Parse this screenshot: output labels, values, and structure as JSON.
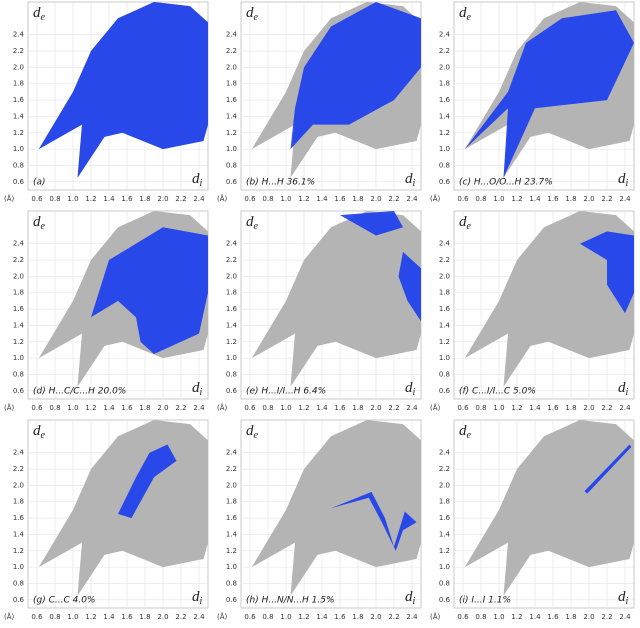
{
  "chart_data": {
    "type": "fingerprint",
    "xlim": [
      0.5,
      2.5
    ],
    "ylim": [
      0.5,
      2.8
    ],
    "xticks": [
      0.6,
      0.8,
      {
        "value": 1,
        "label": "1.0"
      },
      1.2,
      1.4,
      1.6,
      1.8,
      {
        "value": 2,
        "label": "2.0"
      },
      2.2,
      2.4
    ],
    "yticks": [
      0.6,
      0.8,
      {
        "value": 1,
        "label": "1.0"
      },
      1.2,
      1.4,
      1.6,
      1.8,
      {
        "value": 2,
        "label": "2.0"
      },
      2.2,
      2.4
    ],
    "unit": "(Å)",
    "xlabel": [
      "d",
      "i"
    ],
    "ylabel": [
      "d",
      "e"
    ],
    "grid": true,
    "color": "#1a3cf0",
    "background_color": "#b4b4b4",
    "panels": [
      "(a)",
      "(b) H...H  36.1%",
      "(c) H...O/O...H  23.7%",
      "(d) H...C/C...H  20.0%",
      "(e) H...I/I...H  6.4%",
      "(f) C...I/I...C  5.0%",
      "(g) C...C  4.0%",
      "(h) H...N/N...H  1.5%",
      "(i) I...I  1.1%"
    ]
  }
}
